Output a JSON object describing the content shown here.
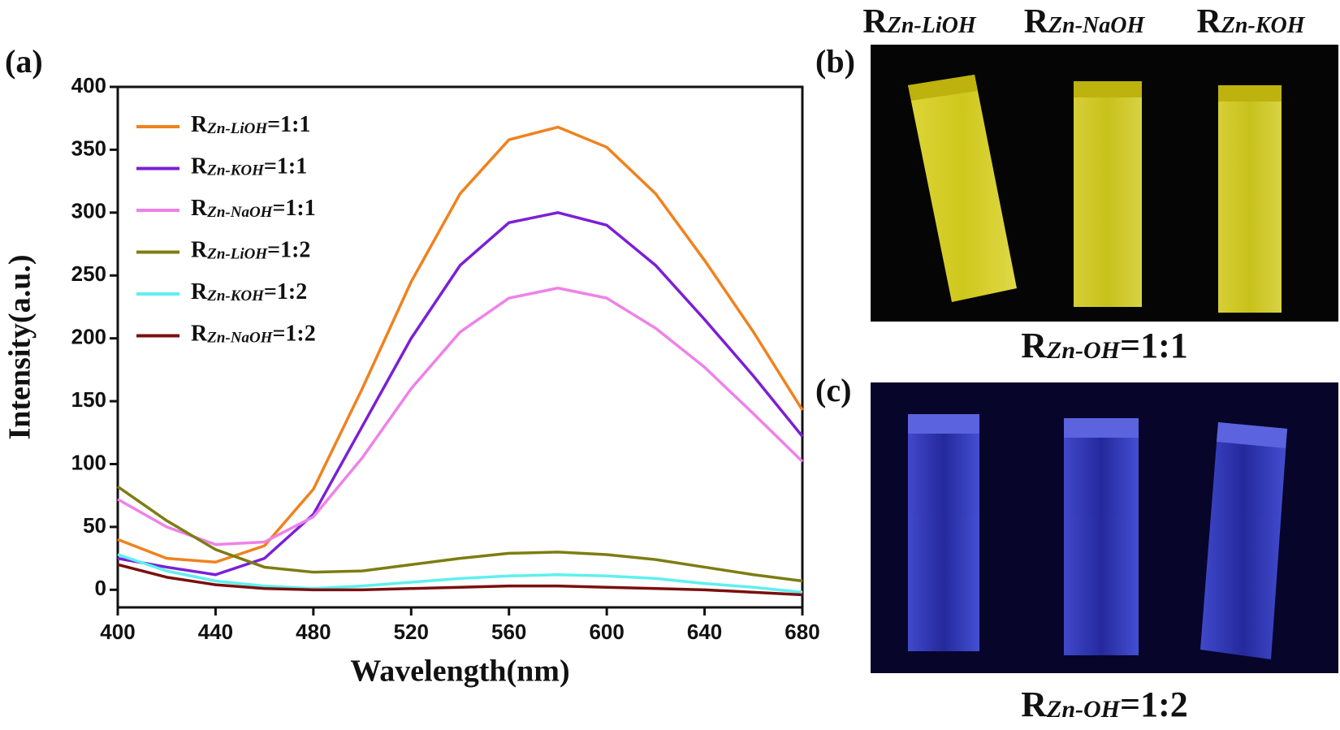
{
  "chart_data": {
    "type": "line",
    "x_label": "Wavelength(nm)",
    "y_label": "Intensity(a.u.)",
    "x": [
      400,
      420,
      440,
      460,
      480,
      500,
      520,
      540,
      560,
      580,
      600,
      620,
      640,
      660,
      680
    ],
    "series": [
      {
        "name": "RZn-LiOH=1:1",
        "color": "#f0821e",
        "values": [
          40,
          25,
          22,
          35,
          80,
          160,
          245,
          315,
          358,
          368,
          352,
          315,
          262,
          205,
          143
        ]
      },
      {
        "name": "RZn-KOH=1:1",
        "color": "#7b1fd6",
        "values": [
          25,
          18,
          12,
          25,
          60,
          130,
          200,
          258,
          292,
          300,
          290,
          258,
          215,
          170,
          122
        ]
      },
      {
        "name": "RZn-NaOH=1:1",
        "color": "#ee82e8",
        "values": [
          72,
          50,
          36,
          38,
          58,
          105,
          160,
          205,
          232,
          240,
          232,
          208,
          177,
          140,
          102
        ]
      },
      {
        "name": "RZn-LiOH=1:2",
        "color": "#7d7d12",
        "values": [
          82,
          55,
          32,
          18,
          14,
          15,
          20,
          25,
          29,
          30,
          28,
          24,
          18,
          12,
          7
        ]
      },
      {
        "name": "RZn-KOH=1:2",
        "color": "#5ef0f0",
        "values": [
          28,
          15,
          7,
          3,
          1,
          3,
          6,
          9,
          11,
          12,
          11,
          9,
          5,
          2,
          -2
        ]
      },
      {
        "name": "RZn-NaOH=1:2",
        "color": "#7a0f0f",
        "values": [
          20,
          10,
          4,
          1,
          0,
          0,
          1,
          2,
          3,
          3,
          2,
          1,
          0,
          -2,
          -4
        ]
      }
    ],
    "xlim": [
      400,
      680
    ],
    "xticks": [
      400,
      440,
      480,
      520,
      560,
      600,
      640,
      680
    ],
    "ylim": [
      -14,
      400
    ],
    "yticks": [
      0,
      50,
      100,
      150,
      200,
      250,
      300,
      350,
      400
    ],
    "grid": false,
    "legend": "upper left"
  },
  "panels": {
    "a": "(a)",
    "b": "(b)",
    "c": "(c)"
  },
  "photo_labels": {
    "top": [
      "RZn-LiOH",
      "RZn-NaOH",
      "RZn-KOH"
    ],
    "b": "RZn-OH=1:1",
    "c": "RZn-OH=1:2"
  }
}
